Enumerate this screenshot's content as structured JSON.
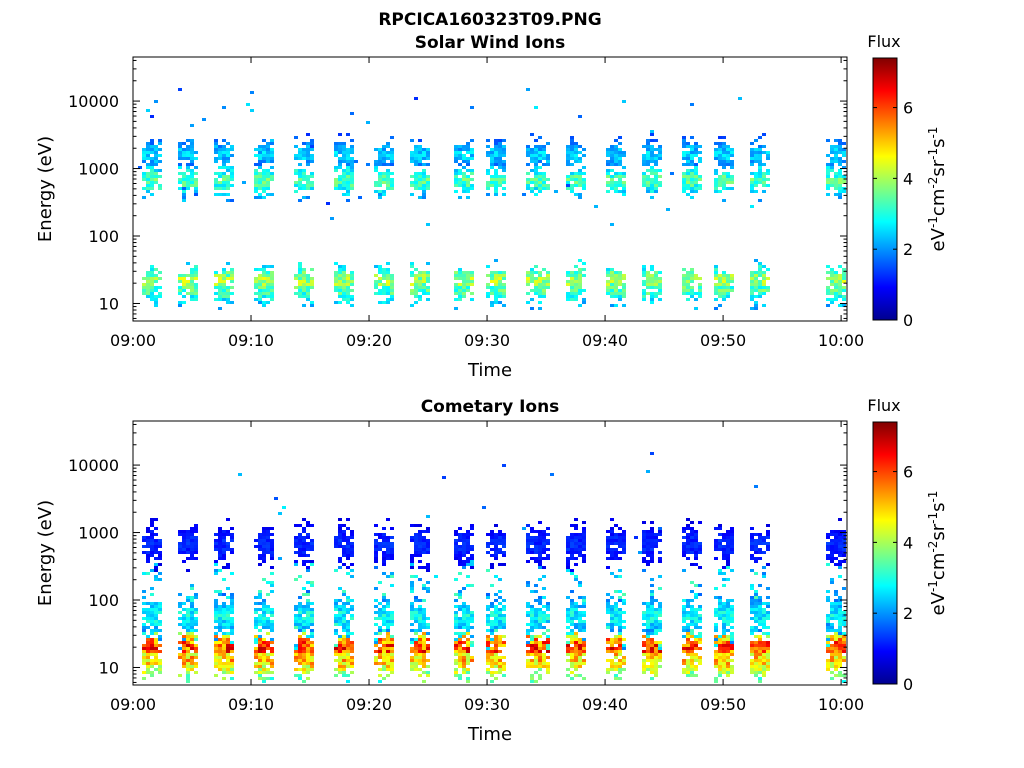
{
  "figure": {
    "title": "RPCICA160323T09.PNG"
  },
  "colorbar": {
    "label": "Flux",
    "units_main": "eV",
    "units_parts": [
      "eV",
      "-1",
      "cm",
      "-2",
      "sr",
      "-1",
      "s",
      "-1"
    ],
    "ticks": [
      "0",
      "2",
      "4",
      "6"
    ],
    "range": [
      0,
      7.4
    ],
    "colormap": "jet"
  },
  "chart_data": [
    {
      "type": "heatmap",
      "title": "Solar Wind Ions",
      "xlabel": "Time",
      "ylabel": "Energy (eV)",
      "x_ticks": [
        "09:00",
        "09:10",
        "09:20",
        "09:30",
        "09:40",
        "09:50",
        "10:00"
      ],
      "xlim_minutes": [
        0,
        60.5
      ],
      "y_scale": "log",
      "y_ticks": [
        "10",
        "100",
        "1000",
        "10000"
      ],
      "ylim": [
        5.5,
        45000
      ],
      "color_label": "Flux",
      "sweep_start_minutes": [
        0.5,
        3.8,
        6.7,
        10.2,
        13.6,
        16.9,
        20.4,
        23.4,
        26.9,
        29.9,
        33.3,
        36.5,
        39.8,
        42.9,
        46.2,
        49.1,
        52.0,
        58.7
      ],
      "blobs": [
        {
          "energy_eV": 1700,
          "flux": 2.6
        },
        {
          "energy_eV": 700,
          "flux": 3.6
        },
        {
          "energy_eV": 23,
          "flux": 4.2
        },
        {
          "energy_eV": 17,
          "flux": 3.6
        }
      ]
    },
    {
      "type": "heatmap",
      "title": "Cometary Ions",
      "xlabel": "Time",
      "ylabel": "Energy (eV)",
      "x_ticks": [
        "09:00",
        "09:10",
        "09:20",
        "09:30",
        "09:40",
        "09:50",
        "10:00"
      ],
      "xlim_minutes": [
        0,
        60.5
      ],
      "y_scale": "log",
      "y_ticks": [
        "10",
        "100",
        "1000",
        "10000"
      ],
      "ylim": [
        5.5,
        45000
      ],
      "color_label": "Flux",
      "sweep_start_minutes": [
        0.5,
        3.8,
        6.7,
        10.2,
        13.6,
        16.9,
        20.4,
        23.4,
        26.9,
        29.9,
        33.3,
        36.5,
        39.8,
        42.9,
        46.2,
        49.1,
        52.0,
        58.7
      ],
      "blobs": [
        {
          "energy_eV": 20,
          "flux": 6.4
        },
        {
          "energy_eV": 14,
          "flux": 5.4
        },
        {
          "energy_eV": 60,
          "flux": 3.0
        },
        {
          "energy_eV": 700,
          "flux": 1.3
        }
      ]
    }
  ]
}
